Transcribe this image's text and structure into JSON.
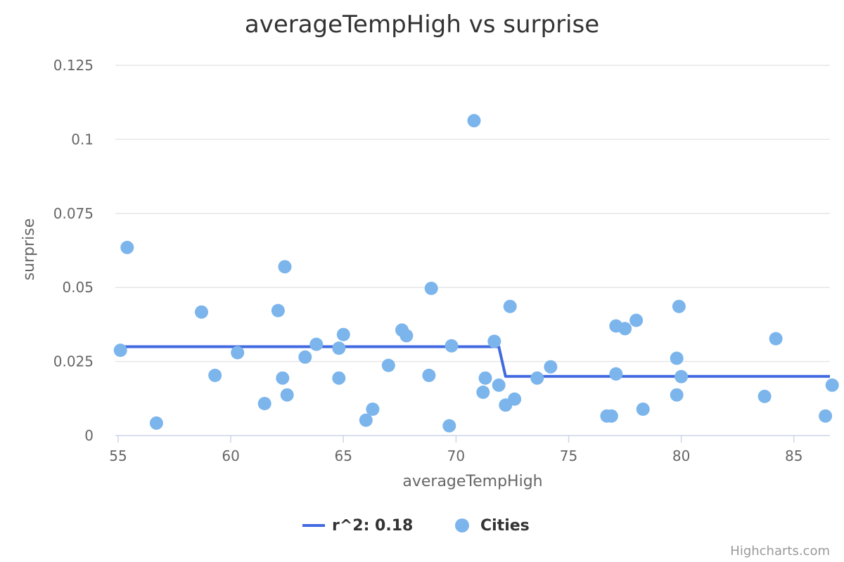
{
  "chart_data": {
    "type": "scatter",
    "title": "averageTempHigh vs surprise",
    "xlabel": "averageTempHigh",
    "ylabel": "surprise",
    "xlim": [
      55,
      86.6
    ],
    "ylim": [
      0,
      0.125
    ],
    "xticks": [
      55,
      60,
      65,
      70,
      75,
      80,
      85
    ],
    "yticks": [
      0,
      0.025,
      0.05,
      0.075,
      0.1,
      0.125
    ],
    "ytick_labels": [
      "0",
      "0.025",
      "0.05",
      "0.075",
      "0.1",
      "0.125"
    ],
    "grid": true,
    "legend_position": "bottom-center",
    "series": [
      {
        "name": "r^2: 0.18",
        "type": "line",
        "color": "#4169e1",
        "points": [
          [
            55.2,
            0.03
          ],
          [
            71.9,
            0.03
          ],
          [
            72.2,
            0.02
          ],
          [
            86.6,
            0.02
          ]
        ]
      },
      {
        "name": "Cities",
        "type": "scatter",
        "color": "#7cb5ec",
        "points": [
          [
            55.1,
            0.0288
          ],
          [
            55.4,
            0.0635
          ],
          [
            56.7,
            0.0042
          ],
          [
            58.7,
            0.0417
          ],
          [
            59.3,
            0.0203
          ],
          [
            60.3,
            0.028
          ],
          [
            61.5,
            0.0108
          ],
          [
            62.1,
            0.0422
          ],
          [
            62.3,
            0.0194
          ],
          [
            62.4,
            0.057
          ],
          [
            62.5,
            0.0137
          ],
          [
            63.3,
            0.0265
          ],
          [
            63.8,
            0.0308
          ],
          [
            64.8,
            0.0295
          ],
          [
            64.8,
            0.0194
          ],
          [
            65.0,
            0.0341
          ],
          [
            66.0,
            0.0052
          ],
          [
            66.3,
            0.0089
          ],
          [
            67.0,
            0.0237
          ],
          [
            67.6,
            0.0356
          ],
          [
            67.8,
            0.0337
          ],
          [
            68.8,
            0.0203
          ],
          [
            68.9,
            0.0497
          ],
          [
            69.7,
            0.0033
          ],
          [
            69.8,
            0.0303
          ],
          [
            70.8,
            0.1063
          ],
          [
            71.2,
            0.0146
          ],
          [
            71.3,
            0.0194
          ],
          [
            71.7,
            0.0318
          ],
          [
            71.9,
            0.017
          ],
          [
            72.2,
            0.0103
          ],
          [
            72.4,
            0.0436
          ],
          [
            72.6,
            0.0123
          ],
          [
            73.6,
            0.0194
          ],
          [
            74.2,
            0.0232
          ],
          [
            76.7,
            0.0066
          ],
          [
            76.9,
            0.0066
          ],
          [
            77.1,
            0.037
          ],
          [
            77.1,
            0.0208
          ],
          [
            77.5,
            0.0361
          ],
          [
            78.0,
            0.0389
          ],
          [
            78.3,
            0.0089
          ],
          [
            79.8,
            0.0137
          ],
          [
            79.8,
            0.0261
          ],
          [
            79.9,
            0.0436
          ],
          [
            80.0,
            0.0199
          ],
          [
            83.7,
            0.0132
          ],
          [
            84.2,
            0.0327
          ],
          [
            86.4,
            0.0066
          ],
          [
            86.7,
            0.017
          ]
        ]
      }
    ]
  },
  "credits": "Highcharts.com"
}
